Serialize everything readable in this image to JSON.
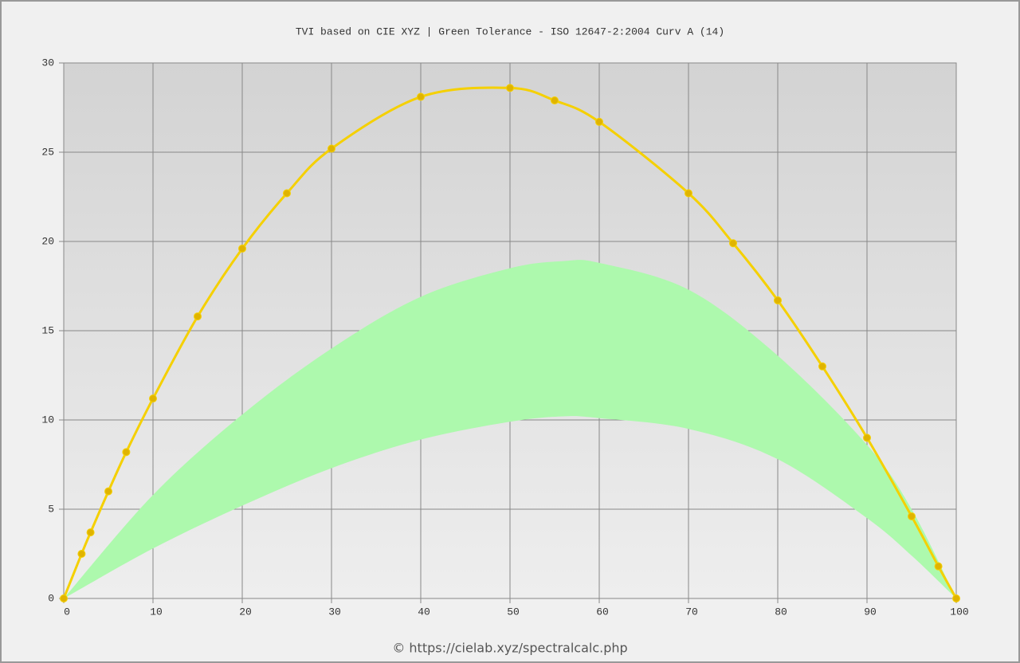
{
  "chart_data": {
    "type": "line",
    "title": "TVI based on CIE XYZ  |  Green Tolerance - ISO 12647-2:2004 Curv A (14)",
    "footer": "© https://cielab.xyz/spectralcalc.php",
    "xlim": [
      0,
      100
    ],
    "xticks": [
      0,
      10,
      20,
      30,
      40,
      50,
      60,
      70,
      80,
      90,
      100
    ],
    "ylim": [
      0,
      30
    ],
    "yticks": [
      0,
      5,
      10,
      15,
      20,
      25,
      30
    ],
    "grid": true,
    "band": {
      "color": "#adf9ad",
      "x": [
        0,
        10,
        20,
        30,
        40,
        50,
        56,
        60,
        70,
        80,
        90,
        95,
        100
      ],
      "upper": [
        0,
        5.8,
        10.3,
        14,
        16.9,
        18.5,
        18.9,
        18.8,
        17.3,
        13.6,
        8.6,
        5,
        0
      ],
      "lower": [
        0,
        2.8,
        5.2,
        7.3,
        8.9,
        9.9,
        10.2,
        10.1,
        9.5,
        7.8,
        4.5,
        2.4,
        0
      ]
    },
    "series": [
      {
        "color": "#f5d000",
        "marker_color": "#e0b400",
        "x": [
          0,
          2,
          3,
          5,
          7,
          10,
          15,
          20,
          25,
          30,
          40,
          50,
          55,
          60,
          70,
          75,
          80,
          85,
          90,
          95,
          98,
          100
        ],
        "values": [
          0,
          2.5,
          3.7,
          6.0,
          8.2,
          11.2,
          15.8,
          19.6,
          22.7,
          25.2,
          28.1,
          28.6,
          27.9,
          26.7,
          22.7,
          19.9,
          16.7,
          13.0,
          9.0,
          4.6,
          1.8,
          0
        ]
      }
    ]
  }
}
